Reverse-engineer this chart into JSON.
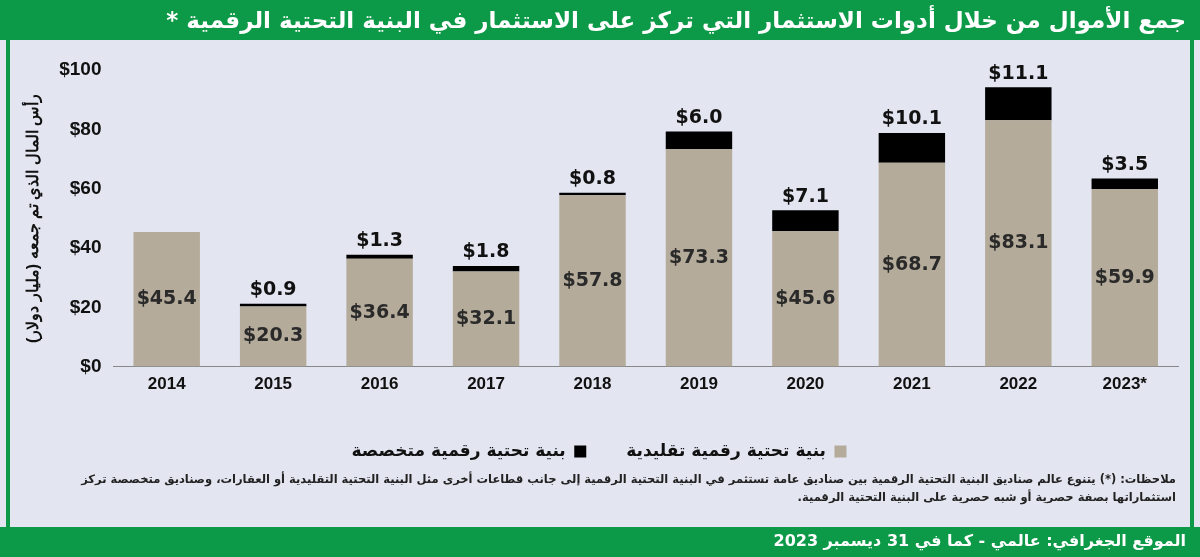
{
  "chart_data": {
    "type": "bar",
    "title": "جمع الأموال من خلال أدوات الاستثمار التي تركز على الاستثمار في البنية التحتية الرقمية *",
    "ylabel": "رأس المال الذي تم جمعه (مليار دولار)",
    "categories": [
      "2014",
      "2015",
      "2016",
      "2017",
      "2018",
      "2019",
      "2020",
      "2021",
      "2022",
      "2023*"
    ],
    "stacked": true,
    "series": [
      {
        "name": "بنية تحتية رقمية تقليدية",
        "color": "#b5ab9a",
        "values": [
          45.4,
          20.3,
          36.4,
          32.1,
          57.8,
          73.3,
          45.6,
          68.7,
          83.1,
          59.9
        ],
        "value_labels": [
          "$45.4",
          "$20.3",
          "$36.4",
          "$32.1",
          "$57.8",
          "$73.3",
          "$45.6",
          "$68.7",
          "$83.1",
          "$59.9"
        ]
      },
      {
        "name": "بنية تحتية رقمية متخصصة",
        "color": "#000000",
        "values": [
          null,
          0.9,
          1.3,
          1.8,
          0.8,
          6.0,
          7.1,
          10.1,
          11.1,
          3.5
        ],
        "value_labels": [
          null,
          "$0.9",
          "$1.3",
          "$1.8",
          "$0.8",
          "$6.0",
          "$7.1",
          "$10.1",
          "$11.1",
          "$3.5"
        ]
      }
    ],
    "ylim": [
      0,
      100
    ],
    "yticks": [
      {
        "value": 0,
        "label": "$0"
      },
      {
        "value": 20,
        "label": "$20"
      },
      {
        "value": 40,
        "label": "$40"
      },
      {
        "value": 60,
        "label": "$60"
      },
      {
        "value": 80,
        "label": "$80"
      },
      {
        "value": 100,
        "label": "$100"
      }
    ],
    "grid": false,
    "legend": "bottom",
    "annotations": [
      "ملاحظات: (*) يتنوع عالم صناديق البنية التحتية الرقمية بين صناديق عامة تستثمر في البنية التحتية الرقمية إلى جانب قطاعات أخرى مثل البنية التحتية التقليدية أو العقارات، وصناديق متخصصة تركز استثماراتها بصفة حصرية أو شبه حصرية على البنية التحتية الرقمية.",
      "الموقع الجغرافي: عالمي - كما في 31 ديسمبر 2023"
    ]
  }
}
